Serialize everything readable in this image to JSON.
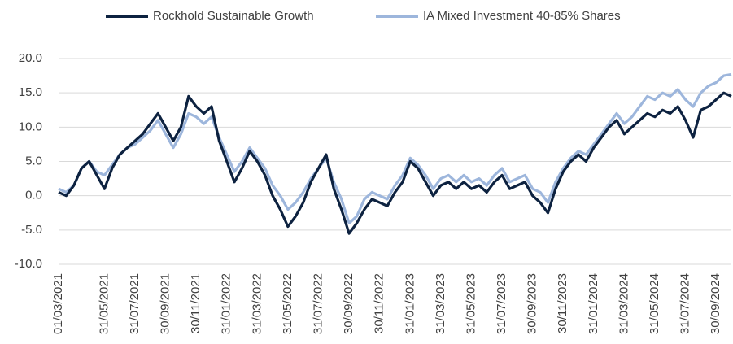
{
  "chart_data": {
    "type": "line",
    "categories": [
      "01/03/2021",
      null,
      null,
      null,
      null,
      null,
      "31/05/2021",
      null,
      null,
      null,
      "31/07/2021",
      null,
      null,
      null,
      "30/09/2021",
      null,
      null,
      null,
      "30/11/2021",
      null,
      null,
      null,
      "31/01/2022",
      null,
      null,
      null,
      "31/03/2022",
      null,
      null,
      null,
      "31/05/2022",
      null,
      null,
      null,
      "31/07/2022",
      null,
      null,
      null,
      "30/09/2022",
      null,
      null,
      null,
      "30/11/2022",
      null,
      null,
      null,
      "31/01/2023",
      null,
      null,
      null,
      "31/03/2023",
      null,
      null,
      null,
      "31/05/2023",
      null,
      null,
      null,
      "31/07/2023",
      null,
      null,
      null,
      "30/09/2023",
      null,
      null,
      null,
      "30/11/2023",
      null,
      null,
      null,
      "31/01/2024",
      null,
      null,
      null,
      "31/03/2024",
      null,
      null,
      null,
      "31/05/2024",
      null,
      null,
      null,
      "31/07/2024",
      null,
      null,
      null,
      "30/09/2024",
      null,
      null
    ],
    "series": [
      {
        "name": "Rockhold Sustainable Growth",
        "color": "#0d2240",
        "values": [
          0.5,
          0,
          1.5,
          4,
          5,
          3,
          1,
          4,
          6,
          7,
          8,
          9,
          10.5,
          12,
          10,
          8,
          10,
          14.5,
          13,
          12,
          13,
          8,
          5,
          2,
          4,
          6.5,
          5,
          3,
          0,
          -2,
          -4.5,
          -3,
          -1,
          2,
          4,
          6,
          1,
          -2,
          -5.5,
          -4,
          -2,
          -0.5,
          -1,
          -1.5,
          0.5,
          2,
          5,
          4,
          2,
          0,
          1.5,
          2,
          1,
          2,
          1,
          1.5,
          0.5,
          2,
          3,
          1,
          1.5,
          2,
          0,
          -1,
          -2.5,
          1,
          3.5,
          5,
          6,
          5,
          7,
          8.5,
          10,
          11,
          9,
          10,
          11,
          12,
          11.5,
          12.5,
          12,
          13,
          11,
          8.5,
          12.5,
          13,
          14,
          15,
          14.5
        ]
      },
      {
        "name": "IA Mixed Investment 40-85% Shares",
        "color": "#9db6dc",
        "values": [
          1,
          0.5,
          1.5,
          4,
          5,
          3.5,
          3,
          4.5,
          6,
          7,
          7.5,
          8.5,
          9.5,
          11,
          9,
          7,
          9,
          12,
          11.5,
          10.5,
          11.5,
          8.5,
          6,
          3.5,
          5,
          7,
          5.5,
          4,
          1.5,
          0,
          -2,
          -1,
          0.5,
          2.5,
          4,
          5.5,
          2,
          -0.5,
          -4,
          -3,
          -0.5,
          0.5,
          0,
          -0.5,
          1.5,
          3,
          5.5,
          4.5,
          3,
          1,
          2.5,
          3,
          2,
          3,
          2,
          2.5,
          1.5,
          3,
          4,
          2,
          2.5,
          3,
          1,
          0.5,
          -1,
          2,
          4,
          5.5,
          6.5,
          6,
          7.5,
          9,
          10.5,
          12,
          10.5,
          11.5,
          13,
          14.5,
          14,
          15,
          14.5,
          15.5,
          14,
          13,
          15,
          16,
          16.5,
          17.5,
          17.7
        ]
      }
    ],
    "ylim": [
      -10,
      20
    ],
    "yticks": [
      {
        "value": -10,
        "label": "-10.0"
      },
      {
        "value": -5,
        "label": "-5.0"
      },
      {
        "value": 0,
        "label": "0.0"
      },
      {
        "value": 5,
        "label": "5.0"
      },
      {
        "value": 10,
        "label": "10.0"
      },
      {
        "value": 15,
        "label": "15.0"
      },
      {
        "value": 20,
        "label": "20.0"
      }
    ],
    "grid": true,
    "legend": "top"
  }
}
